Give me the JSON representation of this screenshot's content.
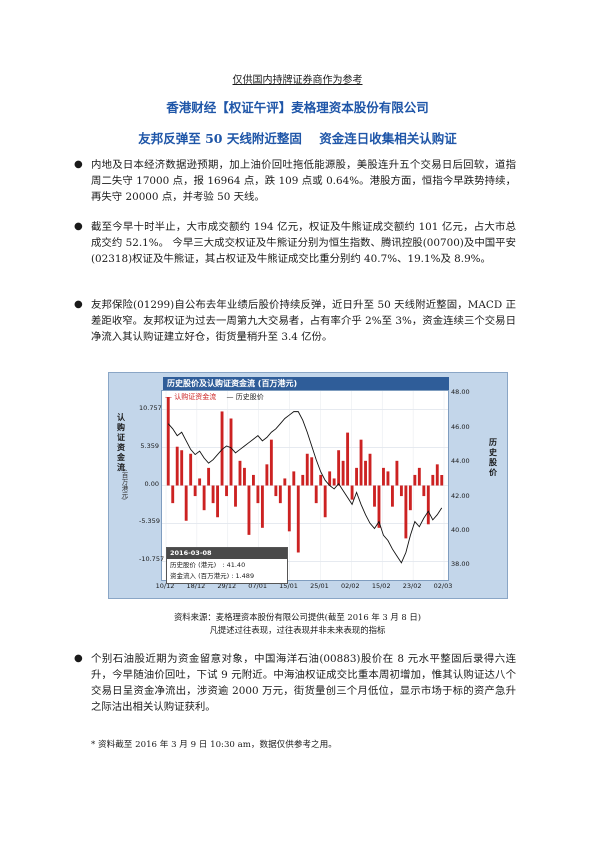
{
  "document": {
    "disclaimer": "仅供国内持牌证券商作为参考",
    "org_title": "香港财经【权证午评】麦格理资本股份有限公司",
    "headline": "友邦反弹至 50 天线附近整固    资金连日收集相关认购证"
  },
  "bullets": [
    "内地及日本经济数据逊预期，加上油价回吐拖低能源股，美股连升五个交易日后回软，道指周二失守 17000 点，报 16964 点，跌 109 点或 0.64%。港股方面，恒指今早跌势持续，再失守 20000 点，并考验 50 天线。",
    "截至今早十时半止，大市成交额约 194 亿元，权证及牛熊证成交额约 101 亿元，占大市总成交约 52.1%。 今早三大成交权证及牛熊证分别为恒生指数、腾讯控股(00700)及中国平安(02318)权证及牛熊证，其占权证及牛熊证成交比重分别约 40.7%、19.1%及 8.9%。",
    "友邦保险(01299)自公布去年业绩后股价持续反弹，近日升至 50 天线附近整固，MACD 正差距收窄。友邦权证为过去一周第九大交易者，占有率介乎 2%至 3%，资金连续三个交易日净流入其认购证建立好仓，街货量稍升至 3.4 亿份。",
    "个别石油股近期为资金留意对象，中国海洋石油(00883)股价在 8 元水平整固后录得六连升，今早随油价回吐，下试 9 元附近。中海油权证成交比重本周初增加，惟其认购证达八个交易日呈资金净流出，涉资逾 2000 万元，街货量创三个月低位，显示市场于标的资产急升之际沽出相关认购证获利。"
  ],
  "chart": {
    "title": "历史股价及认购证资金流 (百万港元)",
    "legend_flow": "认购证资金流",
    "legend_price": "历史股价",
    "left_axis_label": "认购证资金流",
    "left_axis_unit": "(百万港元)",
    "right_axis_label": "历史股价",
    "info_date": "2016-03-08",
    "info_price_label": "历史股价 (港元)",
    "info_price_value": ": 41.40",
    "info_flow_label": "资金流入 (百万港元)",
    "info_flow_value": ": 1.489",
    "colors": {
      "bars": "#cc2222",
      "line": "#111111",
      "title_bar": "#2f5d99",
      "frame": "#c3d6ea"
    }
  },
  "chart_data": {
    "type": "bar",
    "title": "历史股价及认购证资金流 (百万港元)",
    "xlabel": "",
    "ylabel": "认购证资金流 (百万港元)",
    "y2label": "历史股价",
    "ylim": [
      -13.4,
      13.4
    ],
    "y2lim": [
      37.2,
      48.2
    ],
    "yticks": [
      "10.757",
      "5.359",
      "0.00",
      "-5.359",
      "-10.757"
    ],
    "y2ticks": [
      "48.00",
      "46.00",
      "44.00",
      "42.00",
      "40.00",
      "38.00"
    ],
    "x_ticks": [
      "10/12",
      "18/12",
      "29/12",
      "07/01",
      "15/01",
      "25/01",
      "02/02",
      "15/02",
      "23/02",
      "02/03"
    ],
    "series": [
      {
        "name": "认购证资金流",
        "kind": "bar",
        "values": [
          12.5,
          -2.5,
          5.5,
          5.0,
          -5.0,
          4.5,
          -1.5,
          1.0,
          -3.5,
          2.5,
          -2.5,
          -4.5,
          10.5,
          -1.5,
          9.5,
          -3.0,
          3.5,
          2.5,
          -7.0,
          1.5,
          -2.5,
          -6.0,
          3.0,
          6.5,
          -1.5,
          -2.5,
          1.0,
          -6.5,
          2.0,
          -9.5,
          1.5,
          4.5,
          4.0,
          -2.5,
          1.5,
          -4.5,
          2.0,
          1.0,
          5.0,
          3.5,
          7.5,
          -2.0,
          2.5,
          6.5,
          3.5,
          4.5,
          -3.0,
          -6.0,
          2.5,
          2.0,
          -3.0,
          3.5,
          -1.5,
          -7.5,
          -3.5,
          1.5,
          2.5,
          -1.5,
          -5.5,
          1.5,
          3.0,
          1.489
        ]
      },
      {
        "name": "历史股价",
        "kind": "line",
        "values": [
          46.3,
          46.0,
          45.6,
          45.8,
          45.3,
          44.8,
          44.5,
          44.7,
          44.3,
          44.0,
          44.2,
          44.5,
          44.8,
          45.0,
          44.9,
          44.6,
          44.8,
          45.0,
          45.2,
          45.4,
          45.6,
          45.3,
          45.5,
          45.8,
          46.0,
          46.3,
          46.6,
          46.8,
          47.0,
          47.0,
          46.5,
          45.8,
          45.0,
          44.2,
          43.5,
          43.0,
          42.7,
          42.5,
          42.8,
          42.4,
          42.0,
          41.6,
          42.3,
          41.6,
          41.0,
          40.5,
          40.2,
          40.6,
          39.8,
          39.5,
          39.0,
          38.6,
          38.2,
          38.8,
          39.8,
          40.6,
          40.3,
          40.8,
          41.2,
          40.7,
          41.0,
          41.4
        ]
      }
    ],
    "legend": "top-left",
    "grid": true
  },
  "source": {
    "line1": "资料来源：麦格理资本股份有限公司提供(截至 2016 年 3 月 8 日)",
    "line2": "凡提述过往表现，过往表现并非未来表现的指标"
  },
  "footnote": "* 资料截至 2016 年 3 月 9 日 10:30 am，数据仅供参考之用。"
}
